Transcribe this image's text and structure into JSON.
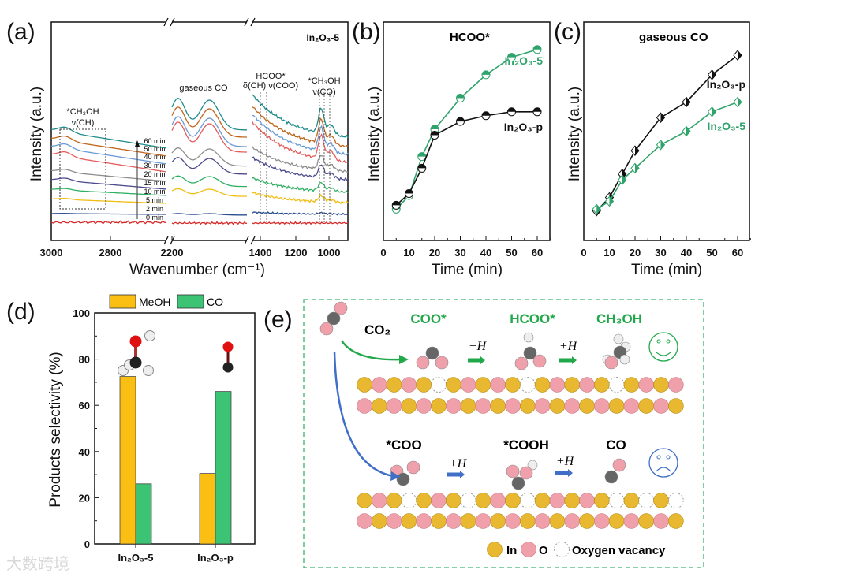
{
  "panels": {
    "a": "(a)",
    "b": "(b)",
    "c": "(c)",
    "d": "(d)",
    "e": "(e)"
  },
  "watermark": "大数跨境",
  "chart_data": [
    {
      "id": "a",
      "type": "line",
      "title": "In₂O₃-5",
      "xlabel": "Wavenumber (cm⁻¹)",
      "ylabel": "Intensity (a.u.)",
      "x_segments": [
        [
          3000,
          2610
        ],
        [
          2200,
          1950
        ],
        [
          1420,
          895
        ]
      ],
      "xticks": [
        "3000",
        "2800",
        "2200",
        "1400",
        "1200",
        "1000"
      ],
      "series": [
        {
          "name": "0 min",
          "color": "#d42a2a",
          "relative_amplitude": 0
        },
        {
          "name": "2 min",
          "color": "#2a4f8f",
          "relative_amplitude": 0.05
        },
        {
          "name": "5 min",
          "color": "#f0be14",
          "relative_amplitude": 0.25
        },
        {
          "name": "10 min",
          "color": "#2fb063",
          "relative_amplitude": 0.35
        },
        {
          "name": "15 min",
          "color": "#4b4a8c",
          "relative_amplitude": 0.55
        },
        {
          "name": "20 min",
          "color": "#8e8e8e",
          "relative_amplitude": 0.6
        },
        {
          "name": "30 min",
          "color": "#e45c5c",
          "relative_amplitude": 1.0
        },
        {
          "name": "40 min",
          "color": "#6a9ad6",
          "relative_amplitude": 1.0
        },
        {
          "name": "50 min",
          "color": "#c0661c",
          "relative_amplitude": 1.0
        },
        {
          "name": "60 min",
          "color": "#1f8c8c",
          "relative_amplitude": 1.05
        }
      ],
      "annotations": {
        "ch3oh_ch": "*CH₃OH",
        "ch3oh_ch_mode": "ν(CH)",
        "gaseous_co": "gaseous CO",
        "hcoo": "HCOO*",
        "hcoo_modes": "δ(CH) ν(COO)",
        "ch3oh_co": "*CH₃OH",
        "ch3oh_co_mode": "ν(CO)"
      }
    },
    {
      "id": "b",
      "type": "line",
      "title": "HCOO*",
      "xlabel": "Time (min)",
      "ylabel": "Intensity (a.u.)",
      "xlim": [
        0,
        65
      ],
      "ylim": [
        0,
        100
      ],
      "xticks": [
        0,
        10,
        20,
        30,
        40,
        50,
        60
      ],
      "x": [
        5,
        10,
        15,
        20,
        30,
        40,
        50,
        60
      ],
      "series": [
        {
          "name": "In₂O₃-5",
          "color": "#2fa36b",
          "values": [
            10,
            17,
            37,
            51,
            67,
            79,
            88,
            92
          ]
        },
        {
          "name": "In₂O₃-p",
          "color": "#111111",
          "values": [
            12,
            18,
            31,
            48,
            55,
            58,
            60,
            60
          ]
        }
      ]
    },
    {
      "id": "c",
      "type": "line",
      "title": "gaseous CO",
      "xlabel": "Time (min)",
      "ylabel": "Intensity (a.u.)",
      "xlim": [
        0,
        65
      ],
      "ylim": [
        0,
        100
      ],
      "xticks": [
        0,
        10,
        20,
        30,
        40,
        50,
        60
      ],
      "x": [
        5,
        10,
        15,
        20,
        30,
        40,
        50,
        60
      ],
      "series": [
        {
          "name": "In₂O₃-p",
          "color": "#111111",
          "values": [
            9,
            16,
            28,
            40,
            57,
            65,
            79,
            89
          ]
        },
        {
          "name": "In₂O₃-5",
          "color": "#2fa36b",
          "values": [
            10,
            14,
            25,
            31,
            43,
            50,
            60,
            65
          ]
        }
      ]
    },
    {
      "id": "d",
      "type": "bar",
      "xlabel": "",
      "ylabel": "Products selectivity (%)",
      "ylim": [
        0,
        100
      ],
      "yticks": [
        0,
        20,
        40,
        60,
        80,
        100
      ],
      "categories": [
        "In₂O₃-5",
        "In₂O₃-p"
      ],
      "series": [
        {
          "name": "MeOH",
          "color": "#fbbf14",
          "values": [
            72.5,
            30.5
          ]
        },
        {
          "name": "CO",
          "color": "#3cc474",
          "values": [
            26,
            66
          ]
        }
      ],
      "legend": "top"
    }
  ],
  "scheme": {
    "co2": "CO₂",
    "top_path": {
      "labels": [
        "COO*",
        "HCOO*",
        "CH₃OH"
      ],
      "color": "#22a84a",
      "step": "+H"
    },
    "bottom_path": {
      "labels": [
        "*COO",
        "*COOH",
        "CO"
      ],
      "color": "#3f6fc6",
      "step": "+H"
    },
    "legend": {
      "in": "In",
      "o": "O",
      "vacancy": "Oxygen vacancy"
    },
    "colors": {
      "in": "#e8b830",
      "o": "#f0a0aa",
      "c": "#666666",
      "h": "#eeeeee"
    }
  }
}
